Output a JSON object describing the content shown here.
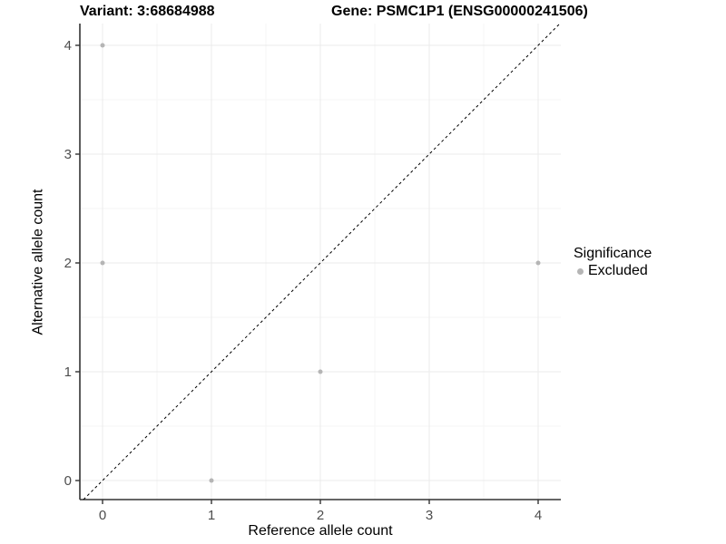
{
  "titles": {
    "variant": "Variant: 3:68684988",
    "gene": "Gene: PSMC1P1 (ENSG00000241506)"
  },
  "chart_data": {
    "type": "scatter",
    "xlabel": "Reference allele count",
    "ylabel": "Alternative allele count",
    "xlim": [
      -0.21,
      4.21
    ],
    "ylim": [
      -0.18,
      4.2
    ],
    "xticks": [
      0,
      1,
      2,
      3,
      4
    ],
    "yticks": [
      0,
      1,
      2,
      3,
      4
    ],
    "minor_ticks": [
      0.5,
      1.5,
      2.5,
      3.5
    ],
    "grid": "major and minor, light gray, on white background",
    "axis_lines": "left and bottom only, dark gray",
    "series": [
      {
        "name": "Excluded",
        "points": [
          {
            "x": 0,
            "y": 4
          },
          {
            "x": 0,
            "y": 2
          },
          {
            "x": 1,
            "y": 0
          },
          {
            "x": 2,
            "y": 1
          },
          {
            "x": 4,
            "y": 2
          }
        ]
      }
    ],
    "identity_line": {
      "description": "y = x diagonal",
      "style": "dashed",
      "color": "#000000"
    },
    "legend_position": "right"
  },
  "legend": {
    "title": "Significance",
    "items": [
      {
        "label": "Excluded",
        "color": "#b5b5b5"
      }
    ]
  },
  "colors": {
    "point": "#b5b5b5",
    "grid_major": "#ebebeb",
    "grid_minor": "#f5f5f5",
    "axis_line": "#333333",
    "tick_mark": "#333333",
    "tick_label": "#4d4d4d",
    "identity_line": "#000000",
    "background": "#ffffff"
  }
}
